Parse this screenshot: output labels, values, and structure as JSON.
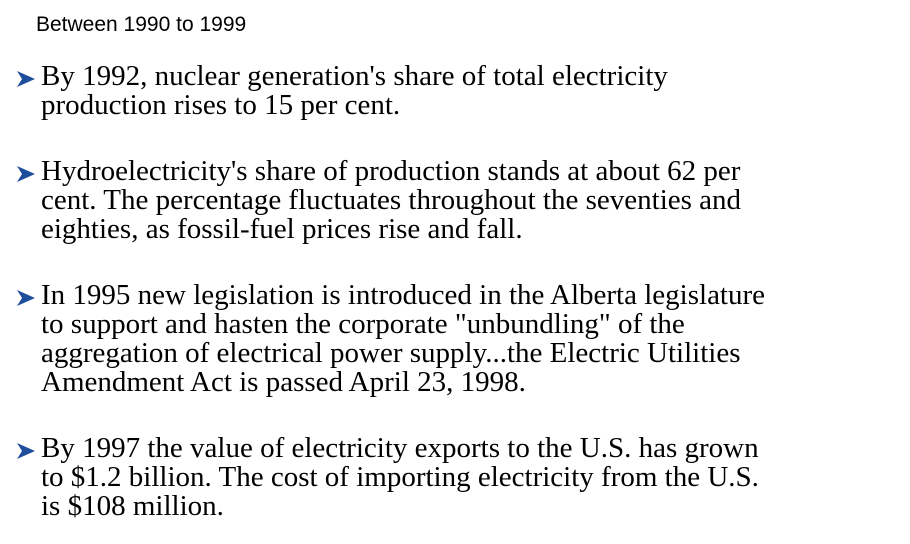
{
  "slide": {
    "title": "Between 1990 to 1999",
    "bullet_icon": "arrowhead-bullet-icon",
    "bullet_color": "#1f4e9c",
    "bullets": [
      {
        "text": "By 1992, nuclear generation's share of total electricity\nproduction rises to 15 per cent."
      },
      {
        "text": "Hydroelectricity's share of production stands at about 62 per\ncent. The percentage fluctuates throughout the seventies and\neighties, as fossil-fuel prices rise and fall."
      },
      {
        "text": "In 1995 new legislation is introduced in the Alberta legislature\nto support and hasten the corporate \"unbundling\" of the\naggregation of electrical power supply...the Electric Utilities\nAmendment Act is passed April 23, 1998."
      },
      {
        "text": "By 1997 the value of electricity exports to the U.S. has grown\nto $1.2 billion. The cost of importing electricity from the U.S.\nis $108 million."
      }
    ]
  }
}
